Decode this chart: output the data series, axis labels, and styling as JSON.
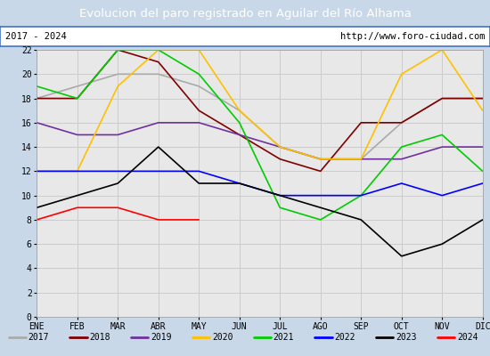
{
  "title": "Evolucion del paro registrado en Aguilar del Río Alhama",
  "title_color": "#ffffff",
  "title_bg_color": "#4472c4",
  "subtitle_left": "2017 - 2024",
  "subtitle_right": "http://www.foro-ciudad.com",
  "months": [
    "ENE",
    "FEB",
    "MAR",
    "ABR",
    "MAY",
    "JUN",
    "JUL",
    "AGO",
    "SEP",
    "OCT",
    "NOV",
    "DIC"
  ],
  "ylim": [
    0,
    22
  ],
  "yticks": [
    0,
    2,
    4,
    6,
    8,
    10,
    12,
    14,
    16,
    18,
    20,
    22
  ],
  "series": {
    "2017": {
      "color": "#aaaaaa",
      "values": [
        18,
        19,
        20,
        20,
        19,
        17,
        14,
        13,
        13,
        16,
        18,
        18
      ]
    },
    "2018": {
      "color": "#800000",
      "values": [
        18,
        18,
        22,
        21,
        17,
        15,
        13,
        12,
        16,
        16,
        18,
        18
      ]
    },
    "2019": {
      "color": "#7030a0",
      "values": [
        16,
        15,
        15,
        16,
        16,
        15,
        14,
        13,
        13,
        13,
        14,
        14
      ]
    },
    "2020": {
      "color": "#ffc000",
      "values": [
        12,
        12,
        19,
        22,
        22,
        17,
        14,
        13,
        13,
        20,
        22,
        17
      ]
    },
    "2021": {
      "color": "#00cc00",
      "values": [
        19,
        18,
        22,
        22,
        20,
        16,
        9,
        8,
        10,
        14,
        15,
        12
      ]
    },
    "2022": {
      "color": "#0000ff",
      "values": [
        12,
        12,
        12,
        12,
        12,
        11,
        10,
        10,
        10,
        11,
        10,
        11
      ]
    },
    "2023": {
      "color": "#000000",
      "values": [
        9,
        10,
        11,
        14,
        11,
        11,
        10,
        9,
        8,
        5,
        6,
        8
      ]
    },
    "2024": {
      "color": "#ff0000",
      "values": [
        8,
        9,
        9,
        8,
        8,
        null,
        null,
        null,
        null,
        null,
        null,
        null
      ]
    }
  },
  "plot_bg_color": "#e8e8e8",
  "grid_color": "#cccccc",
  "legend_bg": "#f0f0f0",
  "border_color": "#4472c4",
  "outer_bg": "#c8d8e8"
}
